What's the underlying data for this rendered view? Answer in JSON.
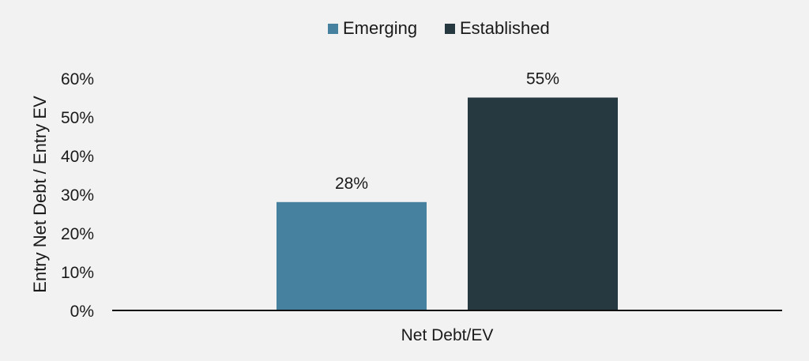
{
  "chart_data": {
    "type": "bar",
    "categories": [
      "Net Debt/EV"
    ],
    "series": [
      {
        "name": "Emerging",
        "values": [
          28
        ],
        "color": "#4682a0"
      },
      {
        "name": "Established",
        "values": [
          55
        ],
        "color": "#263840"
      }
    ],
    "data_labels": [
      "28%",
      "55%"
    ],
    "title": "",
    "xlabel": "",
    "ylabel": "Entry Net Debt / Entry EV",
    "ylim": [
      0,
      60
    ],
    "yticks": [
      0,
      10,
      20,
      30,
      40,
      50,
      60
    ],
    "ytick_labels": [
      "0%",
      "10%",
      "20%",
      "30%",
      "40%",
      "50%",
      "60%"
    ],
    "grid": false,
    "legend_position": "top-center"
  }
}
